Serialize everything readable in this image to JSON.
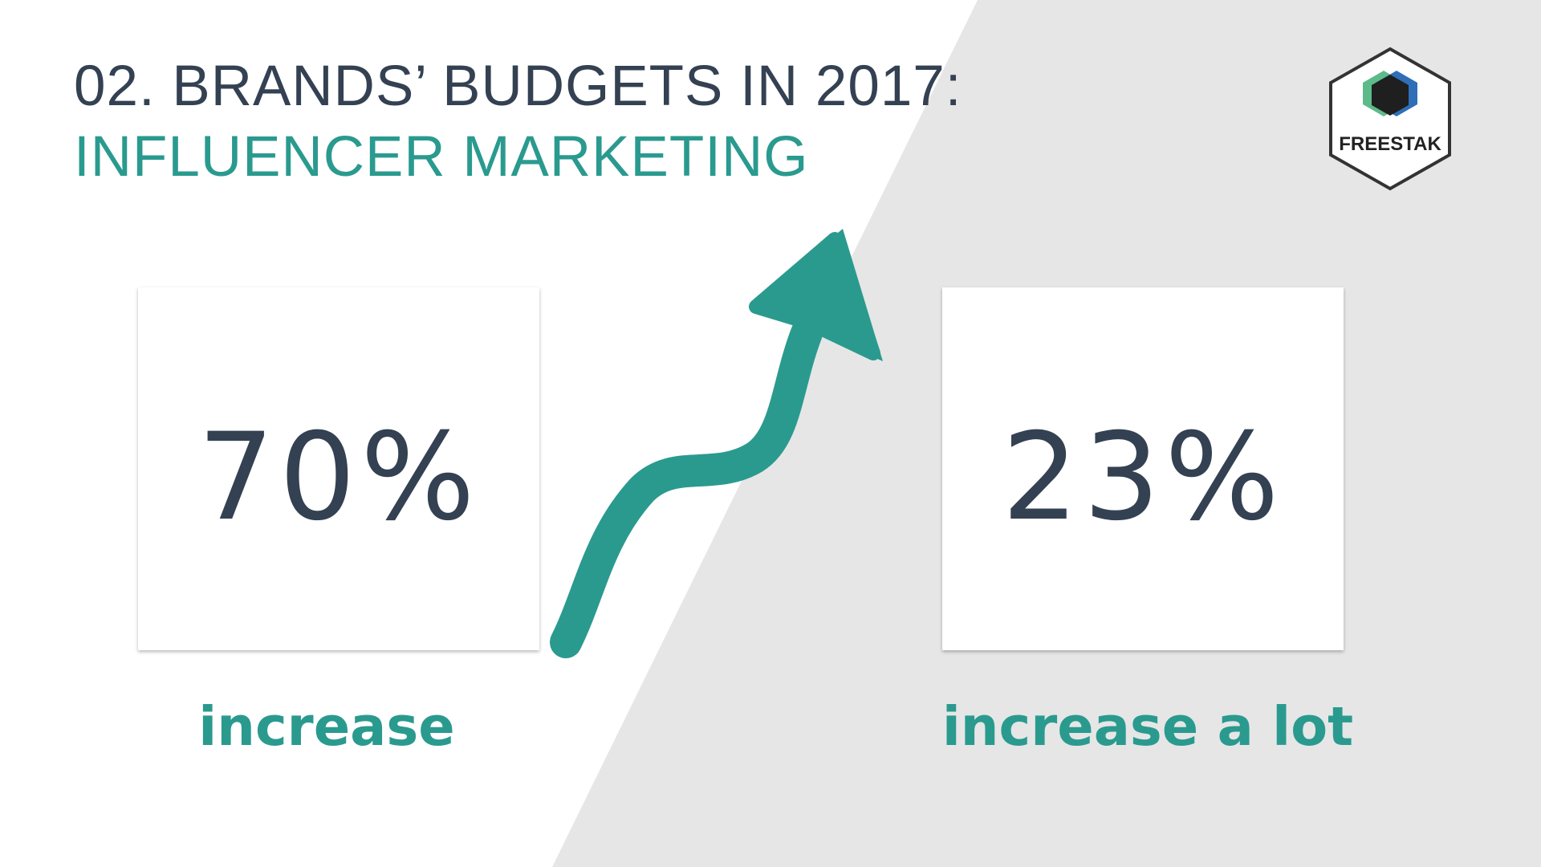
{
  "header": {
    "title_line1": "02. BRANDS’ BUDGETS IN 2017:",
    "title_line2": "INFLUENCER MARKETING"
  },
  "logo": {
    "text": "FREESTAK",
    "icon": "hexagon-logo-icon"
  },
  "stats": [
    {
      "value": "70%",
      "label": "increase"
    },
    {
      "value": "23%",
      "label": "increase a lot"
    }
  ],
  "decor": {
    "arrow_icon": "upward-trend-arrow-icon"
  },
  "colors": {
    "dark_text": "#334152",
    "accent_teal": "#2a9a8f",
    "grey_panel": "#e6e6e6",
    "logo_green": "#5dbb8a",
    "logo_blue": "#2f6fb8",
    "logo_black": "#1f1f1f"
  }
}
